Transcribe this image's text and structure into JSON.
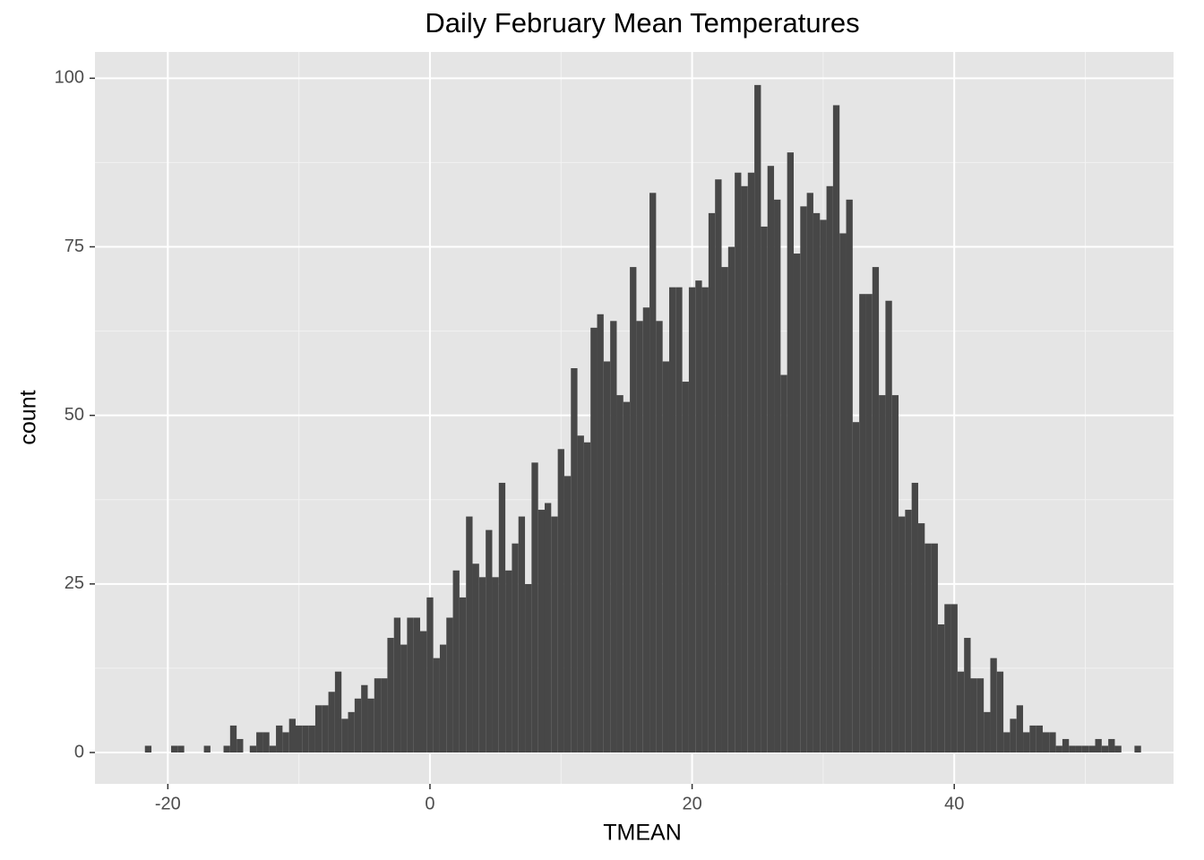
{
  "chart_data": {
    "type": "histogram",
    "title": "Daily February Mean Temperatures",
    "x_label": "TMEAN",
    "y_label": "count",
    "color": "#474747",
    "grid": true,
    "xlim": [
      -25.56,
      56.73
    ],
    "ylim": [
      -4.65,
      103.9
    ],
    "xticks": [
      -20,
      0,
      20,
      40
    ],
    "yticks": [
      0,
      25,
      50,
      75,
      100
    ],
    "bins": [
      -21.75,
      -21.25,
      -20.75,
      -20.25,
      -19.75,
      -19.25,
      -18.75,
      -18.25,
      -17.75,
      -17.25,
      -16.75,
      -16.25,
      -15.75,
      -15.25,
      -14.75,
      -14.25,
      -13.75,
      -13.25,
      -12.75,
      -12.25,
      -11.75,
      -11.25,
      -10.75,
      -10.25,
      -9.75,
      -9.25,
      -8.75,
      -8.25,
      -7.75,
      -7.25,
      -6.75,
      -6.25,
      -5.75,
      -5.25,
      -4.75,
      -4.25,
      -3.75,
      -3.25,
      -2.75,
      -2.25,
      -1.75,
      -1.25,
      -0.75,
      -0.25,
      0.25,
      0.75,
      1.25,
      1.75,
      2.25,
      2.75,
      3.25,
      3.75,
      4.25,
      4.75,
      5.25,
      5.75,
      6.25,
      6.75,
      7.25,
      7.75,
      8.25,
      8.75,
      9.25,
      9.75,
      10.25,
      10.75,
      11.25,
      11.75,
      12.25,
      12.75,
      13.25,
      13.75,
      14.25,
      14.75,
      15.25,
      15.75,
      16.25,
      16.75,
      17.25,
      17.75,
      18.25,
      18.75,
      19.25,
      19.75,
      20.25,
      20.75,
      21.25,
      21.75,
      22.25,
      22.75,
      23.25,
      23.75,
      24.25,
      24.75,
      25.25,
      25.75,
      26.25,
      26.75,
      27.25,
      27.75,
      28.25,
      28.75,
      29.25,
      29.75,
      30.25,
      30.75,
      31.25,
      31.75,
      32.25,
      32.75,
      33.25,
      33.75,
      34.25,
      34.75,
      35.25,
      35.75,
      36.25,
      36.75,
      37.25,
      37.75,
      38.25,
      38.75,
      39.25,
      39.75,
      40.25,
      40.75,
      41.25,
      41.75,
      42.25,
      42.75,
      43.25,
      43.75,
      44.25,
      44.75,
      45.25,
      45.75,
      46.25,
      46.75,
      47.25,
      47.75,
      48.25,
      48.75,
      49.25,
      49.75,
      50.25,
      50.75,
      51.25,
      51.75,
      52.25,
      52.75,
      53.25,
      53.75,
      54.25
    ],
    "values": [
      1,
      0,
      0,
      0,
      1,
      1,
      0,
      0,
      0,
      1,
      0,
      0,
      1,
      4,
      2,
      0,
      1,
      3,
      3,
      1,
      4,
      3,
      5,
      4,
      4,
      4,
      7,
      7,
      9,
      12,
      5,
      6,
      8,
      10,
      8,
      11,
      11,
      17,
      20,
      16,
      20,
      20,
      18,
      23,
      14,
      16,
      20,
      27,
      23,
      35,
      28,
      26,
      33,
      26,
      40,
      27,
      31,
      35,
      25,
      43,
      36,
      37,
      35,
      45,
      41,
      57,
      47,
      46,
      63,
      65,
      58,
      64,
      53,
      52,
      72,
      64,
      66,
      83,
      64,
      58,
      69,
      69,
      55,
      69,
      70,
      69,
      80,
      85,
      72,
      75,
      86,
      84,
      86,
      99,
      78,
      87,
      82,
      56,
      89,
      74,
      81,
      83,
      80,
      79,
      84,
      96,
      77,
      82,
      49,
      68,
      68,
      72,
      53,
      67,
      53,
      35,
      36,
      40,
      34,
      31,
      31,
      19,
      22,
      22,
      12,
      17,
      11,
      11,
      6,
      14,
      12,
      3,
      5,
      7,
      3,
      4,
      4,
      3,
      3,
      1,
      2,
      1,
      1,
      1,
      1,
      2,
      1,
      2,
      1,
      0,
      0,
      1
    ]
  }
}
